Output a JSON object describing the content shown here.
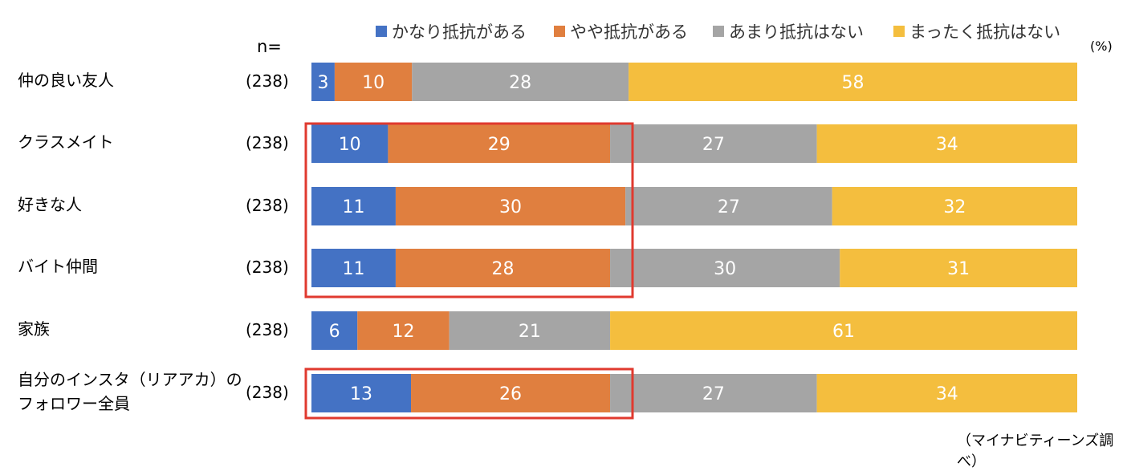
{
  "legend": [
    "かなり抵抗がある",
    "やや抵抗がある",
    "あまり抵抗はない",
    "まったく抵抗はない"
  ],
  "colors": [
    "#4472c4",
    "#e07f3f",
    "#a5a5a5",
    "#f4be3e"
  ],
  "highlight_color": "#e03a2f",
  "n_header": "n=",
  "unit": "(%)",
  "source": "（マイナビティーンズ調べ）",
  "chart_data": {
    "type": "bar",
    "orientation": "horizontal",
    "stacked": true,
    "categories": [
      "仲の良い友人",
      "クラスメイト",
      "好きな人",
      "バイト仲間",
      "家族",
      "自分のインスタ（リアアカ）のフォロワー全員"
    ],
    "category_lines": [
      [
        "仲の良い友人"
      ],
      [
        "クラスメイト"
      ],
      [
        "好きな人"
      ],
      [
        "バイト仲間"
      ],
      [
        "家族"
      ],
      [
        "自分のインスタ（リアアカ）の",
        "フォロワー全員"
      ]
    ],
    "n": [
      "(238)",
      "(238)",
      "(238)",
      "(238)",
      "(238)",
      "(238)"
    ],
    "series": [
      {
        "name": "かなり抵抗がある",
        "values": [
          3,
          10,
          11,
          11,
          6,
          13
        ]
      },
      {
        "name": "やや抵抗がある",
        "values": [
          10,
          29,
          30,
          28,
          12,
          26
        ]
      },
      {
        "name": "あまり抵抗はない",
        "values": [
          28,
          27,
          27,
          30,
          21,
          27
        ]
      },
      {
        "name": "まったく抵抗はない",
        "values": [
          58,
          34,
          32,
          31,
          61,
          34
        ]
      }
    ],
    "xlim": [
      0,
      100
    ],
    "highlight_groups": [
      [
        1,
        2,
        3
      ],
      [
        5
      ]
    ],
    "legend_position": "top"
  }
}
